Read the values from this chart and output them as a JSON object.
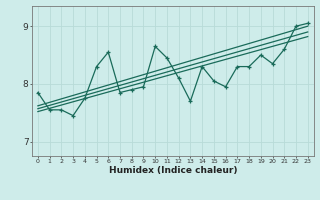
{
  "xlabel": "Humidex (Indice chaleur)",
  "ylabel": "",
  "bg_color": "#ceecea",
  "grid_color": "#b8dbd8",
  "line_color": "#1a6b5a",
  "xlim": [
    -0.5,
    23.5
  ],
  "ylim": [
    6.75,
    9.35
  ],
  "yticks": [
    7,
    8,
    9
  ],
  "xticks": [
    0,
    1,
    2,
    3,
    4,
    5,
    6,
    7,
    8,
    9,
    10,
    11,
    12,
    13,
    14,
    15,
    16,
    17,
    18,
    19,
    20,
    21,
    22,
    23
  ],
  "series1_x": [
    0,
    1,
    2,
    3,
    4,
    5,
    6,
    7,
    8,
    9,
    10,
    11,
    12,
    13,
    14,
    15,
    16,
    17,
    18,
    19,
    20,
    21,
    22,
    23
  ],
  "series1_y": [
    7.85,
    7.55,
    7.55,
    7.45,
    7.75,
    8.3,
    8.55,
    7.85,
    7.9,
    7.95,
    8.65,
    8.45,
    8.1,
    7.7,
    8.3,
    8.05,
    7.95,
    8.3,
    8.3,
    8.5,
    8.35,
    8.6,
    9.0,
    9.05
  ],
  "trend1_x": [
    0,
    23
  ],
  "trend1_y": [
    7.62,
    9.0
  ],
  "trend2_x": [
    0,
    23
  ],
  "trend2_y": [
    7.57,
    8.9
  ],
  "trend3_x": [
    0,
    23
  ],
  "trend3_y": [
    7.52,
    8.82
  ]
}
